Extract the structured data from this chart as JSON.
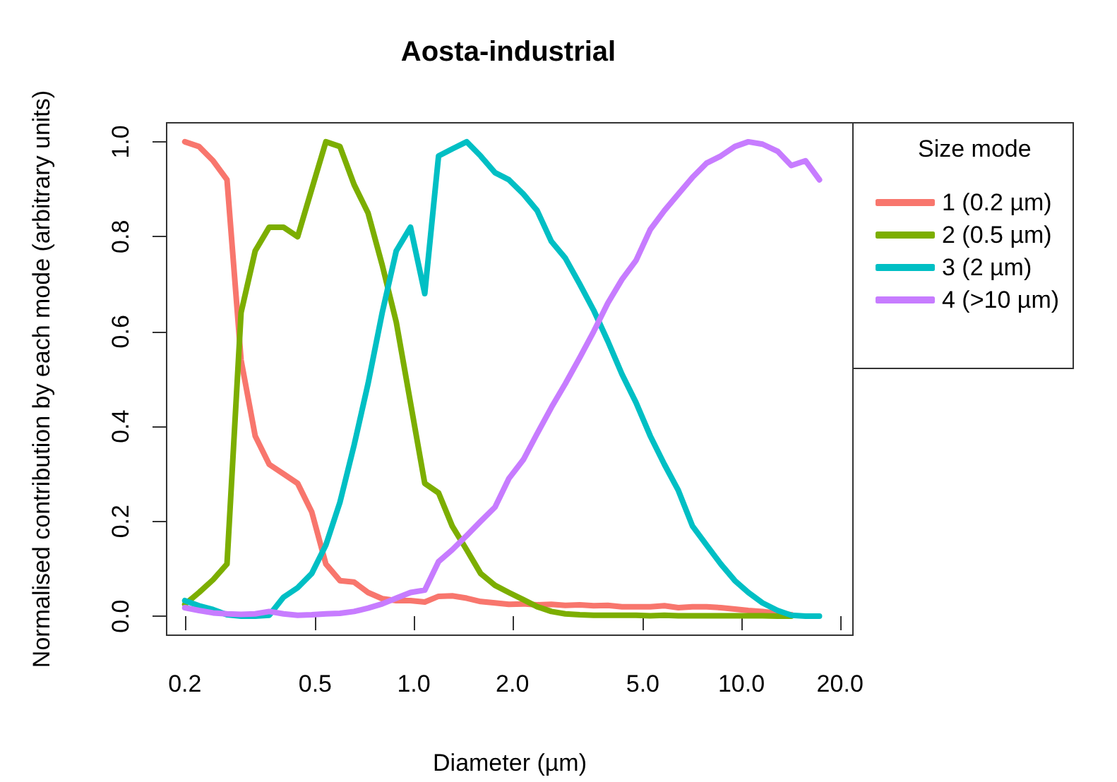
{
  "chart_data": {
    "type": "line",
    "title": "Aosta-industrial",
    "xlabel": "Diameter (µm)",
    "ylabel": "Normalised contribution by each mode (arbitrary units)",
    "legend_title": "Size mode",
    "legend": "right",
    "grid": false,
    "marker": "none",
    "line_style": "solid",
    "log": "x",
    "xlim": [
      0.176,
      21.9
    ],
    "ylim": [
      -0.04,
      1.04
    ],
    "xticks": [
      0.2,
      0.5,
      {
        "value": 1,
        "label": "1.0"
      },
      {
        "value": 2,
        "label": "2.0"
      },
      {
        "value": 5,
        "label": "5.0"
      },
      {
        "value": 10,
        "label": "10.0"
      },
      {
        "value": 20,
        "label": "20.0"
      }
    ],
    "yticks": [
      {
        "value": 0,
        "label": "0.0"
      },
      0.2,
      0.4,
      0.6,
      0.8,
      {
        "value": 1,
        "label": "1.0"
      }
    ],
    "x": [
      0.2,
      0.221,
      0.244,
      0.269,
      0.297,
      0.328,
      0.362,
      0.4,
      0.442,
      0.488,
      0.539,
      0.595,
      0.657,
      0.725,
      0.801,
      0.884,
      0.977,
      1.08,
      1.19,
      1.31,
      1.45,
      1.6,
      1.77,
      1.95,
      2.16,
      2.38,
      2.63,
      2.9,
      3.21,
      3.54,
      3.91,
      4.32,
      4.77,
      5.27,
      5.82,
      6.42,
      7.09,
      7.83,
      8.65,
      9.55,
      10.5,
      11.6,
      12.9,
      14.2,
      15.7,
      17.3
    ],
    "series": [
      {
        "name": "1 (0.2 µm)",
        "color": "#f8766d",
        "values": [
          1.0,
          0.99,
          0.96,
          0.92,
          0.54,
          0.38,
          0.32,
          0.3,
          0.28,
          0.22,
          0.11,
          0.075,
          0.072,
          0.05,
          0.037,
          0.033,
          0.033,
          0.03,
          0.042,
          0.043,
          0.038,
          0.031,
          0.028,
          0.025,
          0.026,
          0.024,
          0.025,
          0.023,
          0.024,
          0.022,
          0.023,
          0.02,
          0.02,
          0.02,
          0.022,
          0.018,
          0.02,
          0.02,
          0.018,
          0.015,
          0.012,
          0.01,
          0.006,
          0.003,
          null,
          null
        ]
      },
      {
        "name": "2 (0.5 µm)",
        "color": "#7cae00",
        "values": [
          0.025,
          0.05,
          0.077,
          0.11,
          0.64,
          0.77,
          0.82,
          0.82,
          0.8,
          0.9,
          1.0,
          0.99,
          0.91,
          0.85,
          0.74,
          0.62,
          0.45,
          0.28,
          0.26,
          0.19,
          0.14,
          0.09,
          0.065,
          0.05,
          0.035,
          0.02,
          0.01,
          0.005,
          0.003,
          0.002,
          0.002,
          0.002,
          0.002,
          0.001,
          0.002,
          0.001,
          0.001,
          0.001,
          0.001,
          0.001,
          0.001,
          0.001,
          0,
          0,
          null,
          null
        ]
      },
      {
        "name": "3 (2 µm)",
        "color": "#00bfc4",
        "values": [
          0.033,
          0.022,
          0.014,
          0.003,
          0,
          0,
          0.002,
          0.04,
          0.06,
          0.09,
          0.15,
          0.24,
          0.36,
          0.49,
          0.64,
          0.77,
          0.82,
          0.68,
          0.97,
          0.985,
          1.0,
          0.97,
          0.935,
          0.92,
          0.89,
          0.855,
          0.79,
          0.755,
          0.7,
          0.645,
          0.58,
          0.51,
          0.45,
          0.38,
          0.32,
          0.265,
          0.19,
          0.15,
          0.11,
          0.075,
          0.05,
          0.028,
          0.012,
          0.002,
          0,
          0
        ]
      },
      {
        "name": "4 (>10 µm)",
        "color": "#c77cff",
        "values": [
          0.018,
          0.012,
          0.007,
          0.005,
          0.004,
          0.005,
          0.01,
          0.005,
          0.002,
          0.003,
          0.005,
          0.006,
          0.01,
          0.017,
          0.026,
          0.038,
          0.05,
          0.055,
          0.115,
          0.14,
          0.17,
          0.2,
          0.23,
          0.29,
          0.33,
          0.385,
          0.44,
          0.49,
          0.545,
          0.6,
          0.66,
          0.71,
          0.75,
          0.815,
          0.855,
          0.89,
          0.925,
          0.955,
          0.97,
          0.99,
          1.0,
          0.995,
          0.98,
          0.95,
          0.96,
          0.92
        ]
      }
    ]
  }
}
